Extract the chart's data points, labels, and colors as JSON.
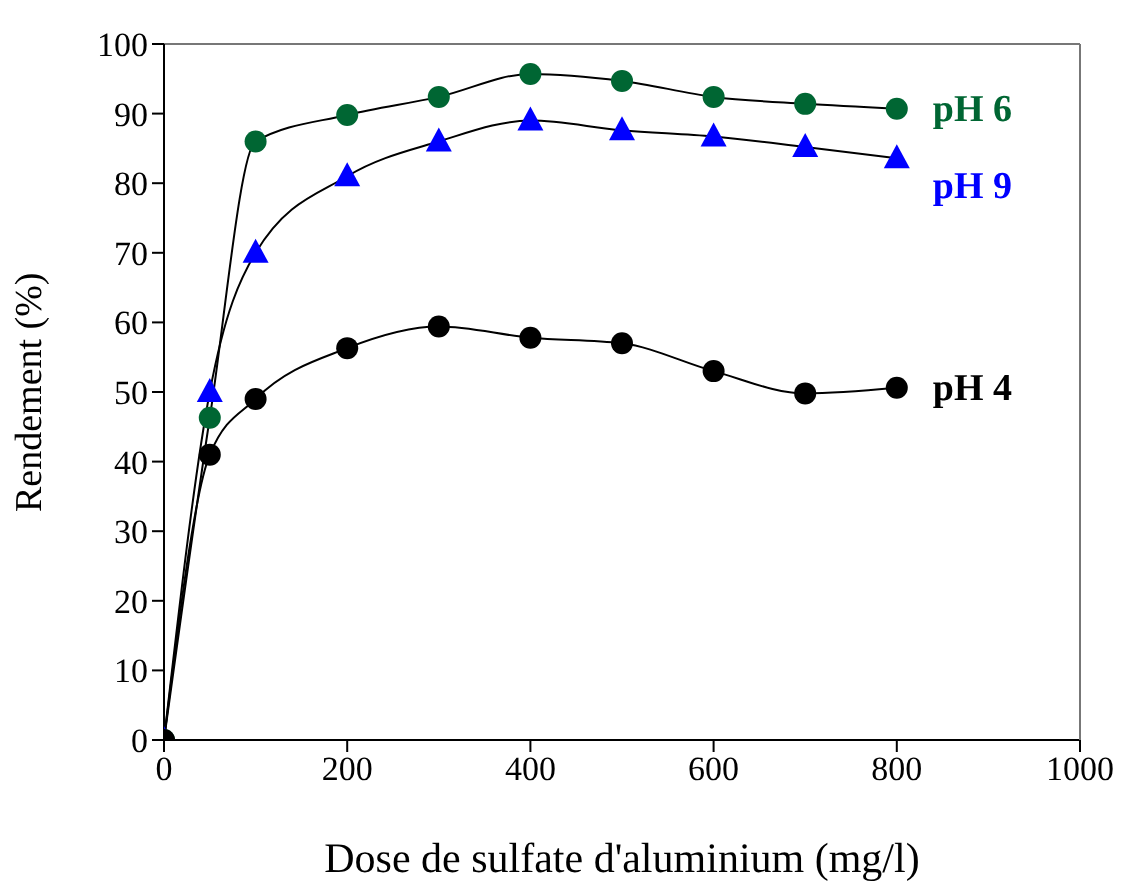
{
  "chart_data": {
    "type": "line",
    "xlabel": "Dose de sulfate d'aluminium (mg/l)",
    "ylabel": "Rendement (%)",
    "x": [
      0,
      50,
      100,
      200,
      300,
      400,
      500,
      600,
      700,
      800
    ],
    "xlim": [
      0,
      1000
    ],
    "xticks": [
      0,
      200,
      400,
      600,
      800,
      1000
    ],
    "ylim": [
      0,
      100
    ],
    "yticks": [
      0,
      10,
      20,
      30,
      40,
      50,
      60,
      70,
      80,
      90,
      100
    ],
    "grid": false,
    "legend": false,
    "series": [
      {
        "name": "pH 6",
        "color": "#006633",
        "marker": "circle",
        "values": [
          0,
          46.3,
          86,
          89.8,
          92.4,
          95.7,
          94.7,
          92.4,
          91.4,
          90.7
        ]
      },
      {
        "name": "pH 9",
        "color": "#0000ff",
        "marker": "triangle",
        "values": [
          0,
          50,
          70,
          81,
          86,
          89,
          87.6,
          86.7,
          85.2,
          83.6
        ]
      },
      {
        "name": "pH 4",
        "color": "#000000",
        "marker": "circle",
        "values": [
          0,
          41,
          49,
          56.3,
          59.4,
          57.8,
          57,
          53,
          49.8,
          50.6
        ]
      }
    ]
  }
}
